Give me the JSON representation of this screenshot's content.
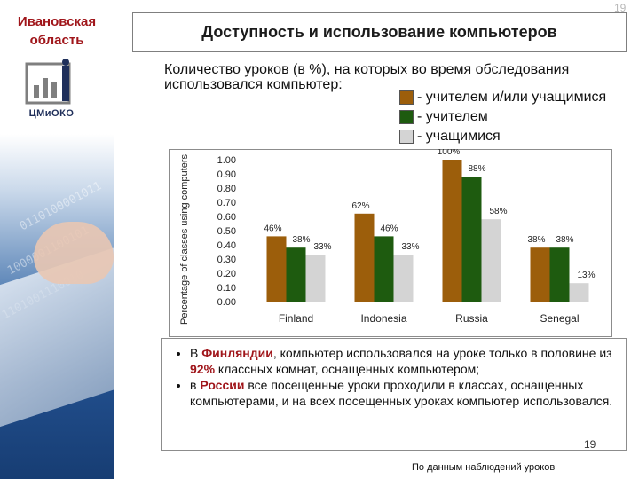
{
  "sidebar": {
    "region": [
      "Ивановская",
      "область"
    ],
    "logo_text": "ЦМиОКО"
  },
  "header": {
    "page_number": "19",
    "title": "Доступность и использование компьютеров"
  },
  "intro": {
    "text": "Количество уроков (в %), на которых во время обследования использовался компьютер:"
  },
  "legend": {
    "items": [
      {
        "label": "- учителем и/или учащимися",
        "color": "#9c5e0b"
      },
      {
        "label": "- учителем",
        "color": "#1e5b0f"
      },
      {
        "label": "- учащимися",
        "color": "#d4d4d4"
      }
    ]
  },
  "chart_data": {
    "type": "bar",
    "ylabel": "Percentage of classes using computers",
    "ylim": [
      0,
      1
    ],
    "ytick_labels": [
      "0.00",
      "0.10",
      "0.20",
      "0.30",
      "0.40",
      "0.50",
      "0.60",
      "0.70",
      "0.80",
      "0.90",
      "1.00"
    ],
    "categories": [
      "Finland",
      "Indonesia",
      "Russia",
      "Senegal"
    ],
    "series": [
      {
        "values": [
          0.46,
          0.62,
          1.0,
          0.38
        ],
        "labels": [
          "46%",
          "62%",
          "100%",
          "38%"
        ],
        "color": "#9c5e0b"
      },
      {
        "values": [
          0.38,
          0.46,
          0.88,
          0.38
        ],
        "labels": [
          "38%",
          "46%",
          "88%",
          "38%"
        ],
        "color": "#1e5b0f"
      },
      {
        "values": [
          0.33,
          0.33,
          0.58,
          0.13
        ],
        "labels": [
          "33%",
          "33%",
          "58%",
          "13%"
        ],
        "color": "#d4d4d4"
      }
    ],
    "grid": false,
    "legend": "none"
  },
  "bullets": {
    "b1": {
      "pre": "В ",
      "hl1": "Финляндии",
      "mid": ", компьютер использовался на уроке только в половине из ",
      "hl2": "92%",
      "post": " классных комнат, оснащенных компьютером;"
    },
    "b2": {
      "pre": "в ",
      "hl1": "России",
      "post": " все посещенные уроки проходили в классах, оснащенных компьютерами, и на всех посещенных уроках компьютер использовался."
    }
  },
  "footer": {
    "number": "19",
    "source": "По данным наблюдений уроков"
  }
}
